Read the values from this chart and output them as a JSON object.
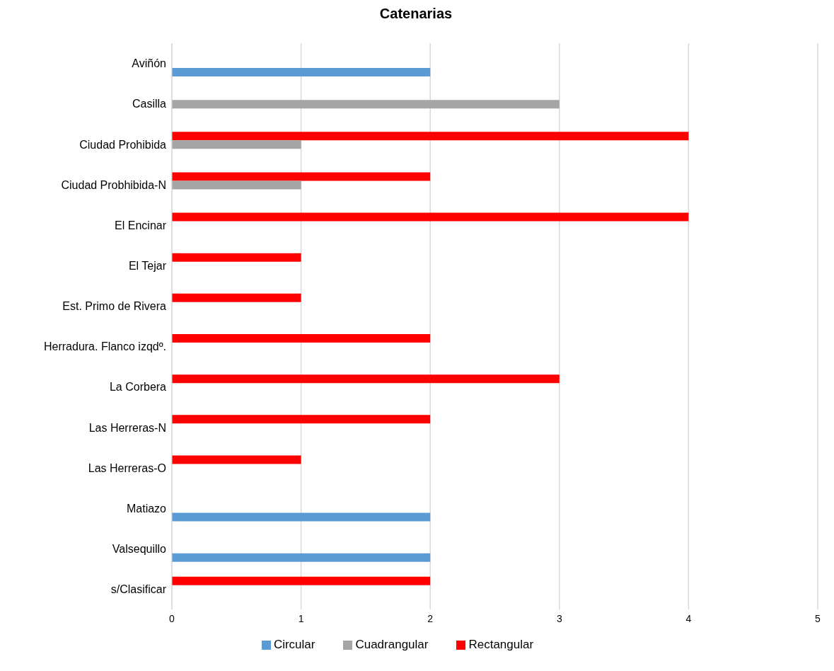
{
  "chart_data": {
    "type": "bar",
    "orientation": "horizontal",
    "title": "Catenarias",
    "categories": [
      "Aviñón",
      "Casilla",
      "Ciudad Prohibida",
      "Ciudad Probhibida-N",
      "El Encinar",
      "El Tejar",
      "Est. Primo de Rivera",
      "Herradura. Flanco izqdº.",
      "La Corbera",
      "Las Herreras-N",
      "Las Herreras-O",
      "Matiazo",
      "Valsequillo",
      "s/Clasificar"
    ],
    "series": [
      {
        "name": "Rectangular",
        "color": "#ff0000",
        "values": [
          null,
          null,
          4,
          2,
          4,
          1,
          1,
          2,
          3,
          2,
          1,
          null,
          null,
          2
        ]
      },
      {
        "name": "Cuadrangular",
        "color": "#a5a5a5",
        "values": [
          null,
          3,
          1,
          1,
          null,
          null,
          null,
          null,
          null,
          null,
          null,
          null,
          null,
          null
        ]
      },
      {
        "name": "Circular",
        "color": "#5b9bd5",
        "values": [
          2,
          null,
          null,
          null,
          null,
          null,
          null,
          null,
          null,
          null,
          null,
          2,
          2,
          null
        ]
      }
    ],
    "xlim": [
      0,
      5
    ],
    "xticks": [
      0,
      1,
      2,
      3,
      4,
      5
    ],
    "grid": "x",
    "legend": "bottom"
  }
}
